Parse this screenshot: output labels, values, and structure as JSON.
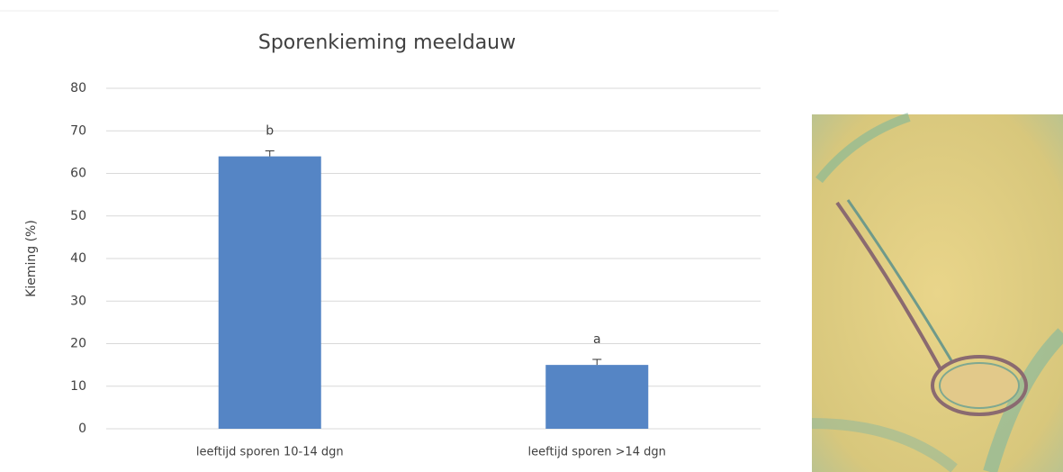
{
  "chart_data": {
    "type": "bar",
    "title": "Sporenkieming meeldauw",
    "y_label": "Kieming (%)",
    "categories": [
      "leeftijd sporen 10-14 dgn",
      "leeftijd sporen >14 dgn"
    ],
    "values": [
      64,
      15
    ],
    "errors": [
      1.3,
      1.3
    ],
    "annotations": [
      "b",
      "a"
    ],
    "color": "#5585c5",
    "ylim": [
      0,
      80
    ],
    "yticks": [
      0,
      10,
      20,
      30,
      40,
      50,
      60,
      70,
      80
    ],
    "grid": true
  }
}
